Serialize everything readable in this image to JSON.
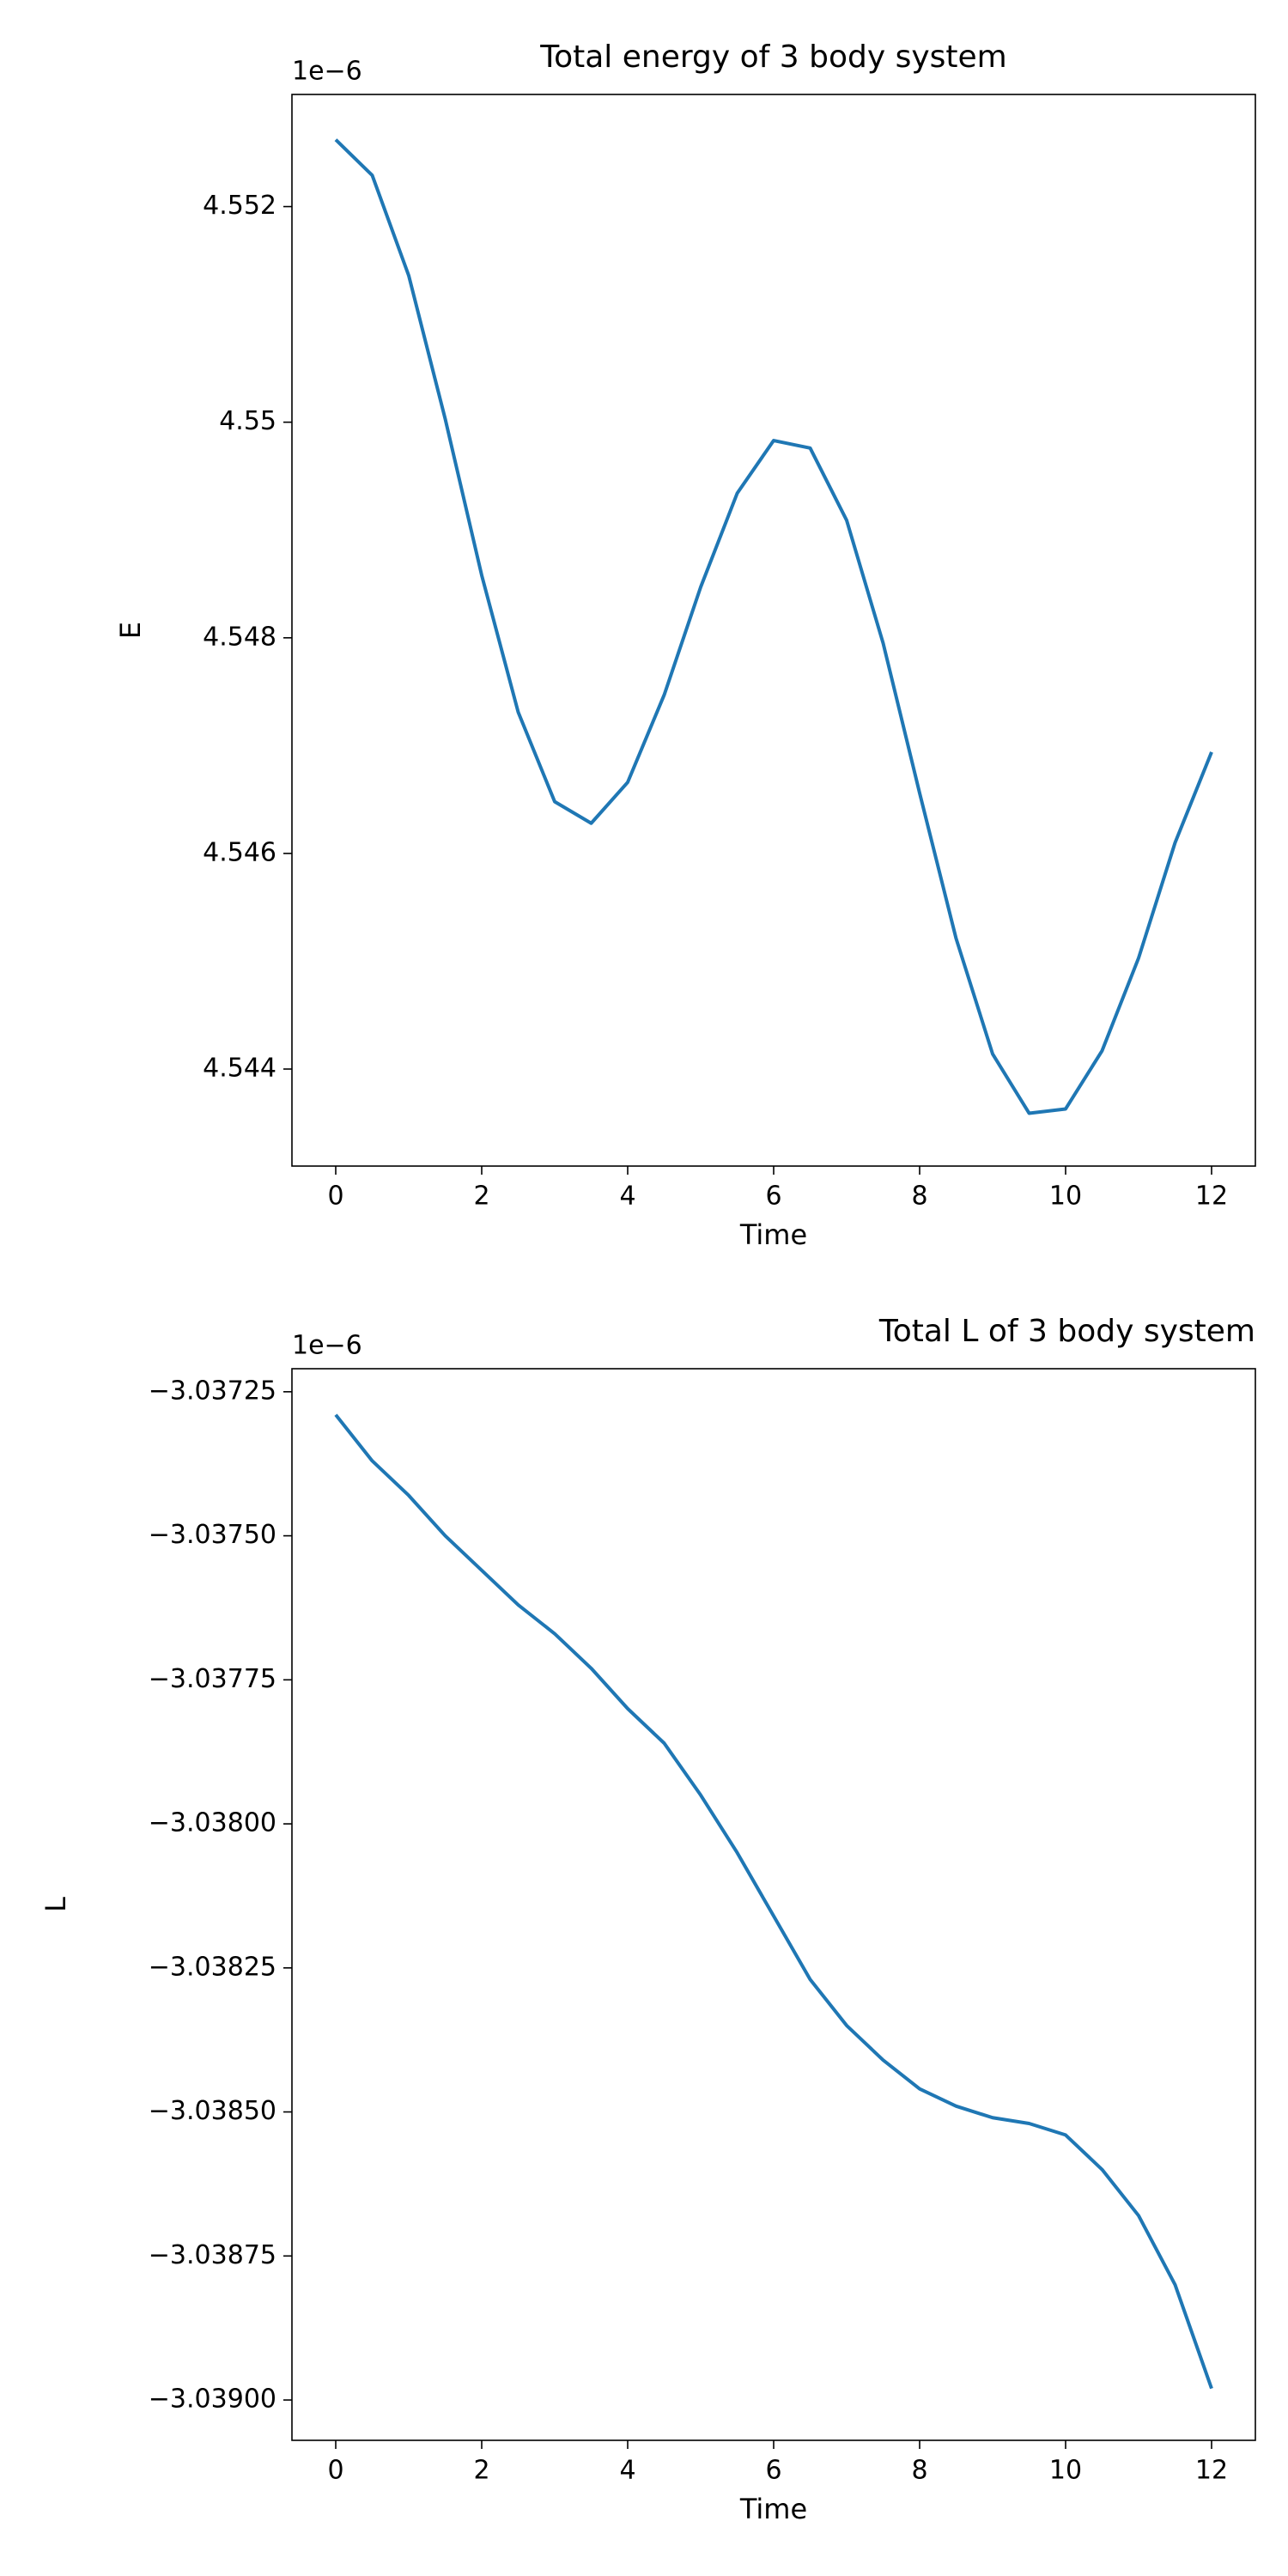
{
  "chart_data": [
    {
      "type": "line",
      "title": "Total energy of 3 body system",
      "title_loc": "center",
      "x_label": "Time",
      "y_label": "E",
      "offset_text": "1e−6",
      "xlim": [
        -0.6,
        12.6
      ],
      "xticks": [
        0,
        2,
        4,
        6,
        8,
        10,
        12
      ],
      "ylim": [
        4.5431,
        4.55304
      ],
      "yticks": [
        4.544,
        4.546,
        4.548,
        4.55,
        4.552
      ],
      "x": [
        0,
        0.5,
        1,
        1.5,
        2,
        2.5,
        3,
        3.5,
        4,
        4.5,
        5,
        5.5,
        6,
        6.5,
        7,
        7.5,
        8,
        8.5,
        9,
        9.5,
        10,
        10.5,
        11,
        11.5,
        12
      ],
      "series": [
        {
          "color": "#1f77b4",
          "values": [
            4.55262,
            4.55229,
            4.55136,
            4.55003,
            4.54858,
            4.54731,
            4.54648,
            4.54628,
            4.54666,
            4.54747,
            4.54847,
            4.54934,
            4.54983,
            4.54976,
            4.54909,
            4.54795,
            4.54656,
            4.54521,
            4.54414,
            4.54359,
            4.54363,
            4.54417,
            4.54503,
            4.5461,
            4.54694
          ]
        }
      ]
    },
    {
      "type": "line",
      "title": "Total L of 3 body system",
      "title_loc": "right",
      "x_label": "Time",
      "y_label": "L",
      "offset_text": "1e−6",
      "xlim": [
        -0.6,
        12.6
      ],
      "xticks": [
        0,
        2,
        4,
        6,
        8,
        10,
        12
      ],
      "ylim": [
        -3.03907,
        -3.03721
      ],
      "yticks": [
        {
          "value": -3.039,
          "label": "−3.03900"
        },
        {
          "value": -3.03875,
          "label": "−3.03875"
        },
        {
          "value": -3.0385,
          "label": "−3.03850"
        },
        {
          "value": -3.03825,
          "label": "−3.03825"
        },
        {
          "value": -3.038,
          "label": "−3.03800"
        },
        {
          "value": -3.03775,
          "label": "−3.03775"
        },
        {
          "value": -3.0375,
          "label": "−3.03750"
        },
        {
          "value": -3.03725,
          "label": "−3.03725"
        }
      ],
      "x": [
        0,
        0.5,
        1,
        1.5,
        2,
        2.5,
        3,
        3.5,
        4,
        4.5,
        5,
        5.5,
        6,
        6.5,
        7,
        7.5,
        8,
        8.5,
        9,
        9.5,
        10,
        10.5,
        11,
        11.5,
        12
      ],
      "series": [
        {
          "color": "#1f77b4",
          "values": [
            -3.03729,
            -3.03737,
            -3.03743,
            -3.0375,
            -3.03756,
            -3.03762,
            -3.03767,
            -3.03773,
            -3.0378,
            -3.03786,
            -3.03795,
            -3.03805,
            -3.03816,
            -3.03827,
            -3.03835,
            -3.03841,
            -3.03846,
            -3.03849,
            -3.03851,
            -3.03852,
            -3.03854,
            -3.0386,
            -3.03868,
            -3.0388,
            -3.03898
          ]
        }
      ]
    }
  ]
}
